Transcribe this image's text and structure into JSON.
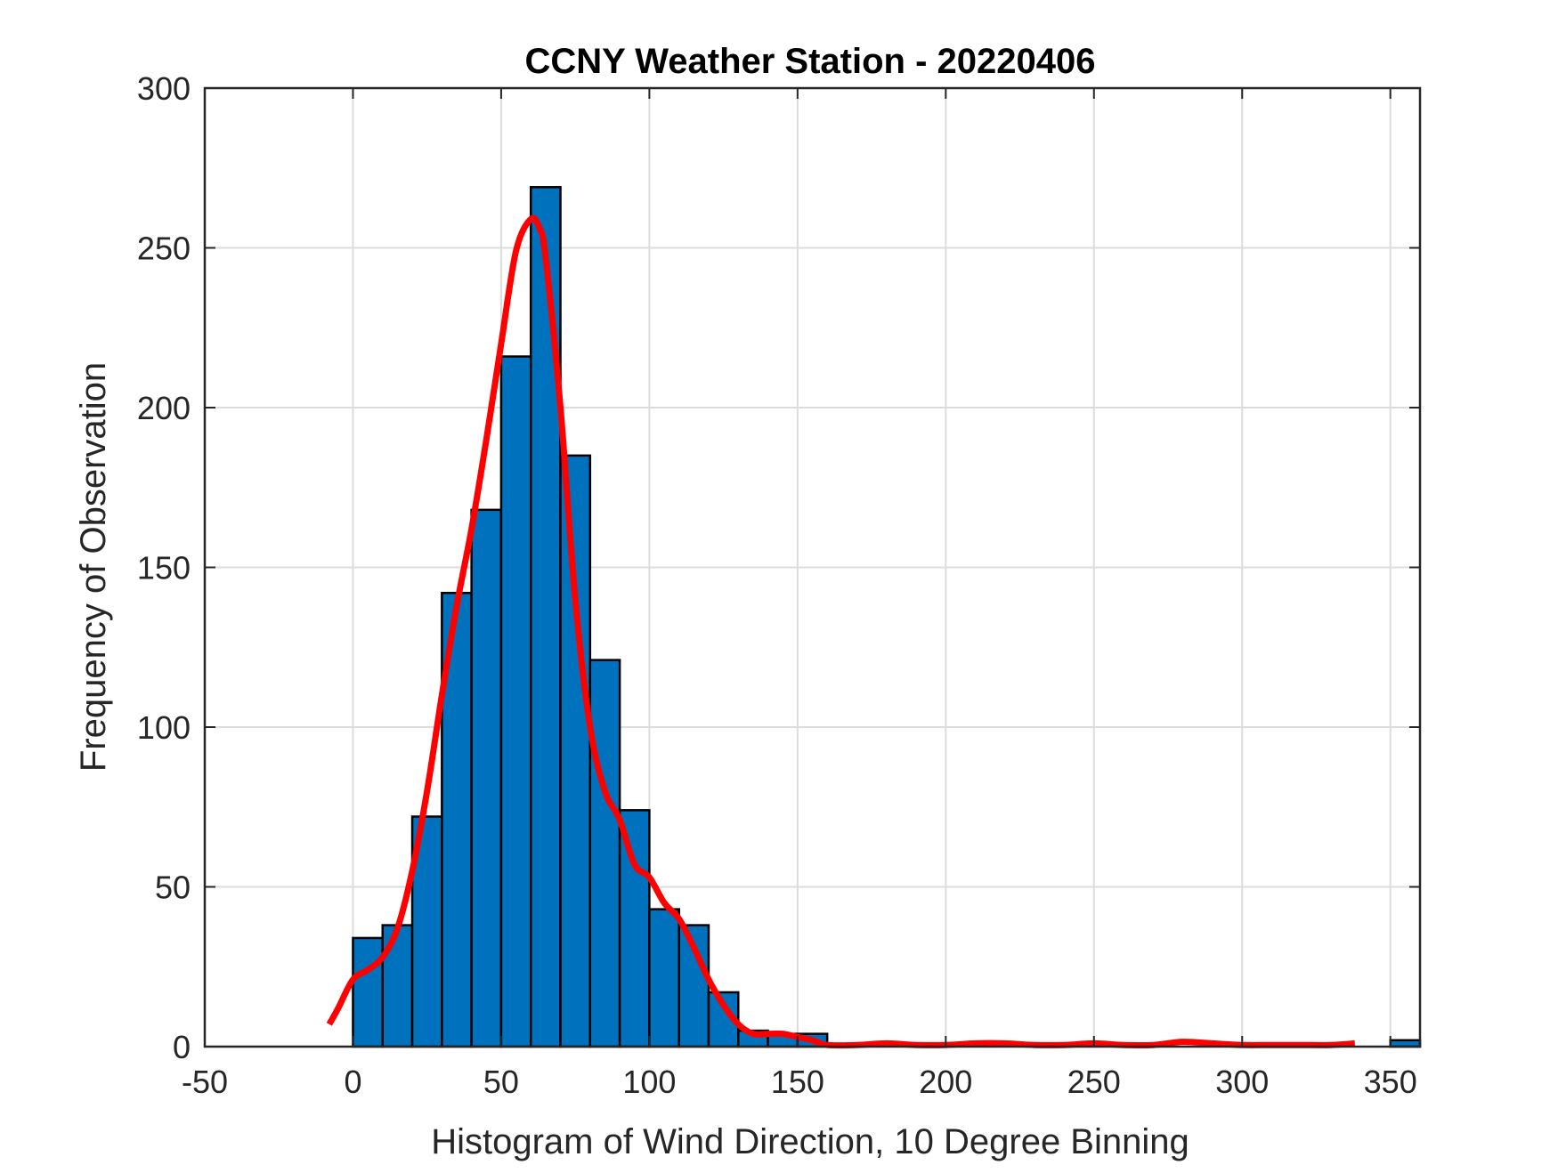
{
  "chart_data": {
    "type": "bar",
    "title": "CCNY Weather Station - 20220406",
    "xlabel": "Histogram of Wind Direction, 10 Degree Binning",
    "ylabel": "Frequency of Observation",
    "xlim": [
      -50,
      360
    ],
    "ylim": [
      0,
      300
    ],
    "xticks": [
      "-50",
      "0",
      "50",
      "100",
      "150",
      "200",
      "250",
      "300",
      "350"
    ],
    "yticks": [
      "0",
      "50",
      "100",
      "150",
      "200",
      "250",
      "300"
    ],
    "grid": true,
    "bin_width": 10,
    "bins": [
      {
        "start": 0,
        "count": 34
      },
      {
        "start": 10,
        "count": 38
      },
      {
        "start": 20,
        "count": 72
      },
      {
        "start": 30,
        "count": 142
      },
      {
        "start": 40,
        "count": 168
      },
      {
        "start": 50,
        "count": 216
      },
      {
        "start": 60,
        "count": 269
      },
      {
        "start": 70,
        "count": 185
      },
      {
        "start": 80,
        "count": 121
      },
      {
        "start": 90,
        "count": 74
      },
      {
        "start": 100,
        "count": 43
      },
      {
        "start": 110,
        "count": 38
      },
      {
        "start": 120,
        "count": 17
      },
      {
        "start": 130,
        "count": 5
      },
      {
        "start": 140,
        "count": 4
      },
      {
        "start": 150,
        "count": 4
      },
      {
        "start": 160,
        "count": 0
      },
      {
        "start": 170,
        "count": 0
      },
      {
        "start": 180,
        "count": 0
      },
      {
        "start": 190,
        "count": 0
      },
      {
        "start": 200,
        "count": 0
      },
      {
        "start": 210,
        "count": 0
      },
      {
        "start": 220,
        "count": 0
      },
      {
        "start": 230,
        "count": 0
      },
      {
        "start": 240,
        "count": 0
      },
      {
        "start": 250,
        "count": 0
      },
      {
        "start": 260,
        "count": 0
      },
      {
        "start": 270,
        "count": 0
      },
      {
        "start": 280,
        "count": 0
      },
      {
        "start": 290,
        "count": 0
      },
      {
        "start": 300,
        "count": 0
      },
      {
        "start": 310,
        "count": 0
      },
      {
        "start": 320,
        "count": 0
      },
      {
        "start": 330,
        "count": 0
      },
      {
        "start": 340,
        "count": 0
      },
      {
        "start": 350,
        "count": 2
      }
    ],
    "density_curve": {
      "x": [
        -8,
        -5,
        0,
        5,
        10,
        15,
        20,
        25,
        30,
        35,
        40,
        45,
        50,
        55,
        60,
        63,
        65,
        70,
        75,
        80,
        85,
        90,
        95,
        100,
        105,
        110,
        115,
        120,
        125,
        130,
        135,
        140,
        145,
        150,
        155,
        160,
        170,
        180,
        190,
        200,
        210,
        220,
        230,
        240,
        250,
        260,
        270,
        280,
        290,
        300,
        310,
        320,
        330,
        338
      ],
      "y": [
        7,
        12,
        21,
        24,
        28,
        37,
        55,
        80,
        110,
        138,
        162,
        190,
        220,
        249,
        259,
        256,
        247,
        200,
        140,
        100,
        80,
        71,
        57,
        53,
        45,
        40,
        31,
        21,
        13,
        7,
        4,
        4,
        4,
        3,
        2,
        0.5,
        0.5,
        1,
        0.5,
        0.5,
        1,
        1,
        0.5,
        0.5,
        1,
        0.5,
        0.5,
        1.5,
        1,
        0.5,
        0.5,
        0.5,
        0.5,
        1
      ]
    },
    "colors": {
      "bar_fill": "#0072BD",
      "bar_edge": "#000000",
      "curve": "#FF0000",
      "grid": "#DCDCDC",
      "axes": "#262626"
    }
  }
}
